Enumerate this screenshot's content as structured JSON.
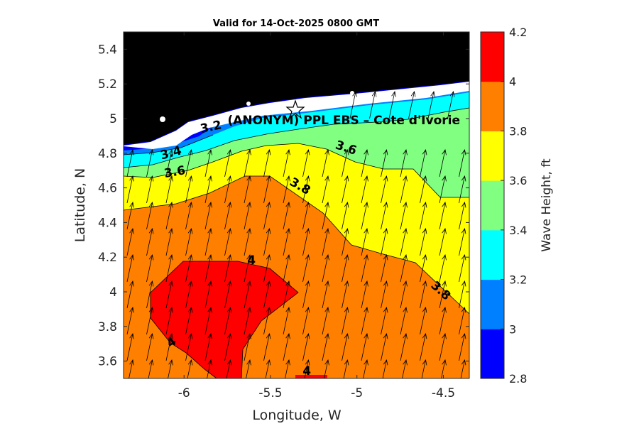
{
  "chart_data": {
    "type": "heatmap",
    "title": "Valid for 14-Oct-2025 0800 GMT",
    "xlabel": "Longitude, W",
    "ylabel": "Latitude, N",
    "xlim": [
      -6.35,
      -4.35
    ],
    "ylim": [
      3.5,
      5.5
    ],
    "xticks": [
      -6,
      -5.5,
      -5,
      -4.5
    ],
    "xtick_labels": [
      "-6",
      "-5.5",
      "-5",
      "-4.5"
    ],
    "yticks": [
      3.6,
      3.8,
      4.0,
      4.2,
      4.4,
      4.6,
      4.8,
      5.0,
      5.2,
      5.4
    ],
    "ytick_labels": [
      "3.6",
      "3.8",
      "4",
      "4.2",
      "4.4",
      "4.6",
      "4.8",
      "5",
      "5.2",
      "5.4"
    ],
    "colorbar": {
      "label": "Wave Height, ft",
      "range": [
        2.8,
        4.2
      ],
      "ticks": [
        "2.8",
        "3",
        "3.2",
        "3.4",
        "3.6",
        "3.8",
        "4",
        "4.2"
      ],
      "colors": [
        "#0000ff",
        "#0080ff",
        "#00ffff",
        "#80ff80",
        "#ffff00",
        "#ff8000",
        "#ff0000"
      ]
    },
    "contour_labels": [
      {
        "text": "3.2",
        "lon": -5.84,
        "lat": 4.93,
        "angle": -12
      },
      {
        "text": "3.4",
        "lon": -6.07,
        "lat": 4.78,
        "angle": -15
      },
      {
        "text": "3.6",
        "lon": -6.05,
        "lat": 4.67,
        "angle": -10
      },
      {
        "text": "3.6",
        "lon": -5.07,
        "lat": 4.81,
        "angle": 18
      },
      {
        "text": "3.8",
        "lon": -5.34,
        "lat": 4.59,
        "angle": 30
      },
      {
        "text": "3.8",
        "lon": -4.53,
        "lat": 3.99,
        "angle": 42
      },
      {
        "text": "4",
        "lon": -5.61,
        "lat": 4.16,
        "angle": 0
      },
      {
        "text": "4",
        "lon": -6.06,
        "lat": 3.69,
        "angle": -35
      },
      {
        "text": "4",
        "lon": -5.29,
        "lat": 3.52,
        "angle": 0
      }
    ],
    "site": {
      "label": "(ANONYM) PPL EBS  – Cote d'Ivorie",
      "lon": -5.33,
      "lat": 5.05
    },
    "wave_direction_arrows": "toward NNE",
    "land_color": "#000000",
    "coastline_fill": "#ffffff",
    "grid": false
  }
}
